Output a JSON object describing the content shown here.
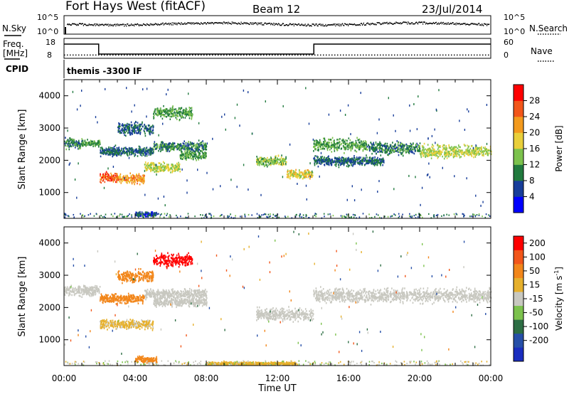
{
  "header": {
    "station": "Fort Hays West (fitACF)",
    "beam": "Beam 12",
    "date": "23/Jul/2014"
  },
  "status_panels": {
    "nsky_label": "N.Sky",
    "nsearch_label": "N.Search",
    "freq_label_line1": "Freq.",
    "freq_label_line2": "[MHz]",
    "nave_label": "Nave",
    "cpid_label": "CPID",
    "cpid_value": "themis -3300 IF",
    "noise_left_ticks": [
      "10^5",
      "10^0"
    ],
    "noise_right_ticks": [
      "10^5",
      "10^0"
    ],
    "freq_left_ticks": [
      "18",
      "8"
    ],
    "freq_right_ticks": [
      "60",
      "0"
    ],
    "freq_segments": [
      {
        "from": 0.0,
        "to": 1.95,
        "level": 15.3
      },
      {
        "from": 1.95,
        "to": 14.05,
        "level": 10.3
      },
      {
        "from": 14.05,
        "to": 24.0,
        "level": 15.3
      }
    ],
    "nave_level": 10
  },
  "power_colorbar": {
    "title": "Power [dB]",
    "ticks": [
      "28",
      "24",
      "20",
      "16",
      "12",
      "8",
      "4"
    ],
    "colors": [
      "#0000ff",
      "#173d9a",
      "#217a3e",
      "#7cc24d",
      "#e9cf3a",
      "#f39a1d",
      "#f2561a",
      "#ff0000"
    ]
  },
  "velocity_colorbar": {
    "title": "Velocity [m s",
    "title_exponent": "-1",
    "title_close": "]",
    "ticks": [
      "200",
      "100",
      "50",
      "15",
      "-15",
      "-50",
      "-100",
      "-200"
    ],
    "colors": [
      "#1a2dbf",
      "#264fa8",
      "#2d6e44",
      "#7cc24d",
      "#c8c8c0",
      "#e6b02c",
      "#f2861a",
      "#f2561a",
      "#ff0000"
    ]
  },
  "chart_data": {
    "type": "heatmap",
    "xlabel": "Time UT",
    "ylabel": "Slant Range [km]",
    "x_ticks": [
      "00:00",
      "04:00",
      "08:00",
      "12:00",
      "16:00",
      "20:00",
      "00:00"
    ],
    "x_range_hours": [
      0,
      24
    ],
    "y_ticks": [
      1000,
      2000,
      3000,
      4000
    ],
    "y_range_km": [
      200,
      4500
    ],
    "grid": false,
    "panels": [
      {
        "name": "power",
        "units": "dB",
        "regions": [
          {
            "t0": 0.0,
            "t1": 1.0,
            "range_km": 2550,
            "spread_km": 180,
            "value_db": 10
          },
          {
            "t0": 1.0,
            "t1": 2.0,
            "range_km": 2550,
            "spread_km": 100,
            "value_db": 12
          },
          {
            "t0": 2.0,
            "t1": 3.0,
            "range_km": 1500,
            "spread_km": 150,
            "value_db": 26
          },
          {
            "t0": 3.0,
            "t1": 4.5,
            "range_km": 1450,
            "spread_km": 150,
            "value_db": 22
          },
          {
            "t0": 4.5,
            "t1": 6.5,
            "range_km": 1800,
            "spread_km": 150,
            "value_db": 16
          },
          {
            "t0": 6.5,
            "t1": 8.0,
            "range_km": 2200,
            "spread_km": 150,
            "value_db": 12
          },
          {
            "t0": 2.0,
            "t1": 5.0,
            "range_km": 2300,
            "spread_km": 150,
            "value_db": 8
          },
          {
            "t0": 5.0,
            "t1": 8.0,
            "range_km": 2450,
            "spread_km": 150,
            "value_db": 10
          },
          {
            "t0": 3.0,
            "t1": 5.0,
            "range_km": 3000,
            "spread_km": 200,
            "value_db": 8
          },
          {
            "t0": 5.0,
            "t1": 7.2,
            "range_km": 3500,
            "spread_km": 200,
            "value_db": 12
          },
          {
            "t0": 10.8,
            "t1": 12.5,
            "range_km": 2000,
            "spread_km": 150,
            "value_db": 14
          },
          {
            "t0": 12.5,
            "t1": 14.0,
            "range_km": 1600,
            "spread_km": 150,
            "value_db": 18
          },
          {
            "t0": 14.0,
            "t1": 17.0,
            "range_km": 2500,
            "spread_km": 200,
            "value_db": 12
          },
          {
            "t0": 17.0,
            "t1": 20.0,
            "range_km": 2400,
            "spread_km": 200,
            "value_db": 10
          },
          {
            "t0": 20.0,
            "t1": 24.0,
            "range_km": 2300,
            "spread_km": 200,
            "value_db": 16
          },
          {
            "t0": 14.0,
            "t1": 18.0,
            "range_km": 2000,
            "spread_km": 150,
            "value_db": 8
          },
          {
            "t0": 4.0,
            "t1": 5.2,
            "range_km": 350,
            "spread_km": 80,
            "value_db": 6
          }
        ]
      },
      {
        "name": "velocity",
        "units": "m/s",
        "regions": [
          {
            "t0": 0.0,
            "t1": 2.0,
            "range_km": 2550,
            "spread_km": 180,
            "value_ms": 0
          },
          {
            "t0": 2.0,
            "t1": 5.0,
            "range_km": 1500,
            "spread_km": 150,
            "value_ms": -20
          },
          {
            "t0": 5.0,
            "t1": 8.0,
            "range_km": 2200,
            "spread_km": 150,
            "value_ms": 0
          },
          {
            "t0": 2.0,
            "t1": 4.5,
            "range_km": 2300,
            "spread_km": 150,
            "value_ms": -60
          },
          {
            "t0": 4.5,
            "t1": 8.0,
            "range_km": 2450,
            "spread_km": 150,
            "value_ms": 0
          },
          {
            "t0": 3.0,
            "t1": 5.0,
            "range_km": 3000,
            "spread_km": 200,
            "value_ms": -60
          },
          {
            "t0": 5.0,
            "t1": 7.2,
            "range_km": 3500,
            "spread_km": 200,
            "value_ms": -220
          },
          {
            "t0": 10.8,
            "t1": 14.0,
            "range_km": 1800,
            "spread_km": 200,
            "value_ms": 0
          },
          {
            "t0": 14.0,
            "t1": 24.0,
            "range_km": 2400,
            "spread_km": 220,
            "value_ms": 0
          },
          {
            "t0": 4.0,
            "t1": 5.2,
            "range_km": 400,
            "spread_km": 100,
            "value_ms": -80
          },
          {
            "t0": 8.0,
            "t1": 13.0,
            "range_km": 280,
            "spread_km": 60,
            "value_ms": -40
          }
        ]
      }
    ]
  }
}
